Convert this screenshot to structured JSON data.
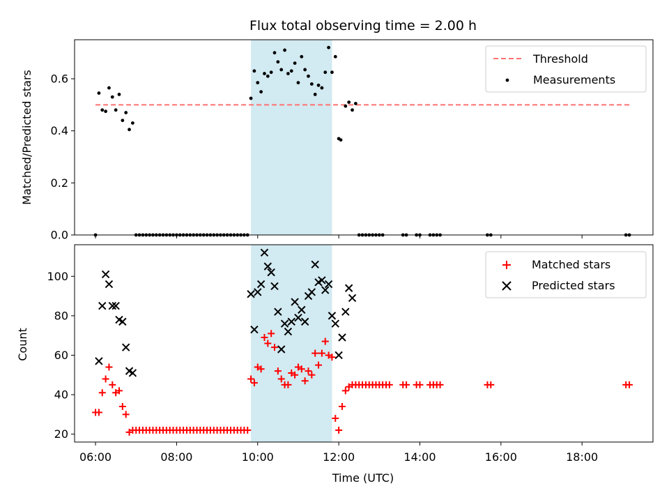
{
  "chart_data": [
    {
      "type": "scatter",
      "title": "Flux total observing time = 2.00 h",
      "xlabel": "",
      "ylabel": "Matched/Predicted stars",
      "xlim": [
        "05:29",
        "19:45"
      ],
      "ylim": [
        0,
        0.75
      ],
      "yticks": [
        0.0,
        0.2,
        0.4,
        0.6
      ],
      "ytick_labels": [
        "0.0",
        "0.2",
        "0.4",
        "0.6"
      ],
      "highlight_span": [
        "09:50",
        "11:50"
      ],
      "threshold": {
        "name": "Threshold",
        "value": 0.5,
        "x_range": [
          "06:00",
          "19:12"
        ],
        "color": "#ff7070"
      },
      "legend": {
        "placement": "top-right",
        "entries": [
          "Threshold",
          "Measurements"
        ]
      },
      "series": [
        {
          "name": "Measurements",
          "color": "#000000",
          "marker": "dot",
          "points": [
            [
              "06:00",
              0.0
            ],
            [
              "06:05",
              0.545
            ],
            [
              "06:10",
              0.48
            ],
            [
              "06:15",
              0.475
            ],
            [
              "06:20",
              0.565
            ],
            [
              "06:25",
              0.53
            ],
            [
              "06:30",
              0.48
            ],
            [
              "06:35",
              0.54
            ],
            [
              "06:40",
              0.44
            ],
            [
              "06:45",
              0.47
            ],
            [
              "06:50",
              0.405
            ],
            [
              "06:55",
              0.43
            ],
            [
              "07:00",
              0.0
            ],
            [
              "07:05",
              0.0
            ],
            [
              "07:10",
              0.0
            ],
            [
              "07:15",
              0.0
            ],
            [
              "07:20",
              0.0
            ],
            [
              "07:25",
              0.0
            ],
            [
              "07:30",
              0.0
            ],
            [
              "07:35",
              0.0
            ],
            [
              "07:40",
              0.0
            ],
            [
              "07:45",
              0.0
            ],
            [
              "07:50",
              0.0
            ],
            [
              "07:55",
              0.0
            ],
            [
              "08:00",
              0.0
            ],
            [
              "08:05",
              0.0
            ],
            [
              "08:10",
              0.0
            ],
            [
              "08:15",
              0.0
            ],
            [
              "08:20",
              0.0
            ],
            [
              "08:25",
              0.0
            ],
            [
              "08:30",
              0.0
            ],
            [
              "08:35",
              0.0
            ],
            [
              "08:40",
              0.0
            ],
            [
              "08:45",
              0.0
            ],
            [
              "08:50",
              0.0
            ],
            [
              "08:55",
              0.0
            ],
            [
              "09:00",
              0.0
            ],
            [
              "09:05",
              0.0
            ],
            [
              "09:10",
              0.0
            ],
            [
              "09:15",
              0.0
            ],
            [
              "09:20",
              0.0
            ],
            [
              "09:25",
              0.0
            ],
            [
              "09:30",
              0.0
            ],
            [
              "09:35",
              0.0
            ],
            [
              "09:40",
              0.0
            ],
            [
              "09:45",
              0.0
            ],
            [
              "09:50",
              0.525
            ],
            [
              "09:55",
              0.63
            ],
            [
              "10:00",
              0.585
            ],
            [
              "10:05",
              0.55
            ],
            [
              "10:10",
              0.62
            ],
            [
              "10:15",
              0.61
            ],
            [
              "10:20",
              0.625
            ],
            [
              "10:25",
              0.7
            ],
            [
              "10:30",
              0.665
            ],
            [
              "10:35",
              0.635
            ],
            [
              "10:40",
              0.71
            ],
            [
              "10:45",
              0.62
            ],
            [
              "10:50",
              0.63
            ],
            [
              "10:55",
              0.66
            ],
            [
              "11:00",
              0.585
            ],
            [
              "11:05",
              0.685
            ],
            [
              "11:10",
              0.635
            ],
            [
              "11:15",
              0.61
            ],
            [
              "11:20",
              0.58
            ],
            [
              "11:25",
              0.54
            ],
            [
              "11:30",
              0.575
            ],
            [
              "11:35",
              0.565
            ],
            [
              "11:40",
              0.625
            ],
            [
              "11:45",
              0.72
            ],
            [
              "11:50",
              0.625
            ],
            [
              "11:55",
              0.685
            ],
            [
              "12:00",
              0.37
            ],
            [
              "12:03",
              0.365
            ],
            [
              "12:10",
              0.495
            ],
            [
              "12:15",
              0.51
            ],
            [
              "12:20",
              0.48
            ],
            [
              "12:25",
              0.505
            ],
            [
              "12:30",
              0.0
            ],
            [
              "12:35",
              0.0
            ],
            [
              "12:40",
              0.0
            ],
            [
              "12:45",
              0.0
            ],
            [
              "12:50",
              0.0
            ],
            [
              "12:55",
              0.0
            ],
            [
              "13:00",
              0.0
            ],
            [
              "13:05",
              0.0
            ],
            [
              "13:35",
              0.0
            ],
            [
              "13:40",
              0.0
            ],
            [
              "13:55",
              0.0
            ],
            [
              "14:00",
              0.0
            ],
            [
              "14:15",
              0.0
            ],
            [
              "14:20",
              0.0
            ],
            [
              "14:25",
              0.0
            ],
            [
              "14:30",
              0.0
            ],
            [
              "15:40",
              0.0
            ],
            [
              "15:45",
              0.0
            ],
            [
              "19:05",
              0.0
            ],
            [
              "19:10",
              0.0
            ]
          ]
        }
      ]
    },
    {
      "type": "scatter",
      "title": "",
      "xlabel": "Time (UTC)",
      "ylabel": "Count",
      "xlim": [
        "05:29",
        "19:45"
      ],
      "ylim": [
        16,
        116
      ],
      "xticks": [
        "06:00",
        "08:00",
        "10:00",
        "12:00",
        "14:00",
        "16:00",
        "18:00"
      ],
      "yticks": [
        20,
        40,
        60,
        80,
        100
      ],
      "ytick_labels": [
        "20",
        "40",
        "60",
        "80",
        "100"
      ],
      "highlight_span": [
        "09:50",
        "11:50"
      ],
      "legend": {
        "placement": "top-right",
        "entries": [
          "Matched stars",
          "Predicted stars"
        ]
      },
      "series": [
        {
          "name": "Matched stars",
          "color": "#ff0000",
          "marker": "plus",
          "points": [
            [
              "06:00",
              31
            ],
            [
              "06:05",
              31
            ],
            [
              "06:10",
              41
            ],
            [
              "06:15",
              48
            ],
            [
              "06:20",
              54
            ],
            [
              "06:25",
              45
            ],
            [
              "06:30",
              41
            ],
            [
              "06:35",
              42
            ],
            [
              "06:40",
              34
            ],
            [
              "06:45",
              30
            ],
            [
              "06:50",
              21
            ],
            [
              "06:55",
              22
            ],
            [
              "07:00",
              22
            ],
            [
              "07:05",
              22
            ],
            [
              "07:10",
              22
            ],
            [
              "07:15",
              22
            ],
            [
              "07:20",
              22
            ],
            [
              "07:25",
              22
            ],
            [
              "07:30",
              22
            ],
            [
              "07:35",
              22
            ],
            [
              "07:40",
              22
            ],
            [
              "07:45",
              22
            ],
            [
              "07:50",
              22
            ],
            [
              "07:55",
              22
            ],
            [
              "08:00",
              22
            ],
            [
              "08:05",
              22
            ],
            [
              "08:10",
              22
            ],
            [
              "08:15",
              22
            ],
            [
              "08:20",
              22
            ],
            [
              "08:25",
              22
            ],
            [
              "08:30",
              22
            ],
            [
              "08:35",
              22
            ],
            [
              "08:40",
              22
            ],
            [
              "08:45",
              22
            ],
            [
              "08:50",
              22
            ],
            [
              "08:55",
              22
            ],
            [
              "09:00",
              22
            ],
            [
              "09:05",
              22
            ],
            [
              "09:10",
              22
            ],
            [
              "09:15",
              22
            ],
            [
              "09:20",
              22
            ],
            [
              "09:25",
              22
            ],
            [
              "09:30",
              22
            ],
            [
              "09:35",
              22
            ],
            [
              "09:40",
              22
            ],
            [
              "09:45",
              22
            ],
            [
              "09:50",
              48
            ],
            [
              "09:55",
              46
            ],
            [
              "10:00",
              54
            ],
            [
              "10:05",
              53
            ],
            [
              "10:10",
              69
            ],
            [
              "10:15",
              66
            ],
            [
              "10:20",
              71
            ],
            [
              "10:25",
              64
            ],
            [
              "10:30",
              52
            ],
            [
              "10:35",
              48
            ],
            [
              "10:40",
              45
            ],
            [
              "10:45",
              45
            ],
            [
              "10:50",
              51
            ],
            [
              "10:55",
              50
            ],
            [
              "11:00",
              54
            ],
            [
              "11:05",
              53
            ],
            [
              "11:10",
              47
            ],
            [
              "11:15",
              52
            ],
            [
              "11:20",
              50
            ],
            [
              "11:25",
              61
            ],
            [
              "11:30",
              55
            ],
            [
              "11:35",
              61
            ],
            [
              "11:40",
              67
            ],
            [
              "11:45",
              60
            ],
            [
              "11:50",
              59
            ],
            [
              "11:55",
              28
            ],
            [
              "12:00",
              22
            ],
            [
              "12:05",
              34
            ],
            [
              "12:10",
              42
            ],
            [
              "12:15",
              44
            ],
            [
              "12:20",
              45
            ],
            [
              "12:25",
              45
            ],
            [
              "12:30",
              45
            ],
            [
              "12:35",
              45
            ],
            [
              "12:40",
              45
            ],
            [
              "12:45",
              45
            ],
            [
              "12:50",
              45
            ],
            [
              "12:55",
              45
            ],
            [
              "13:00",
              45
            ],
            [
              "13:05",
              45
            ],
            [
              "13:10",
              45
            ],
            [
              "13:15",
              45
            ],
            [
              "13:35",
              45
            ],
            [
              "13:40",
              45
            ],
            [
              "13:55",
              45
            ],
            [
              "14:00",
              45
            ],
            [
              "14:15",
              45
            ],
            [
              "14:20",
              45
            ],
            [
              "14:25",
              45
            ],
            [
              "14:30",
              45
            ],
            [
              "15:40",
              45
            ],
            [
              "15:45",
              45
            ],
            [
              "19:05",
              45
            ],
            [
              "19:10",
              45
            ]
          ]
        },
        {
          "name": "Predicted stars",
          "color": "#000000",
          "marker": "x",
          "points": [
            [
              "06:05",
              57
            ],
            [
              "06:10",
              85
            ],
            [
              "06:15",
              101
            ],
            [
              "06:20",
              96
            ],
            [
              "06:25",
              85
            ],
            [
              "06:30",
              85
            ],
            [
              "06:35",
              78
            ],
            [
              "06:40",
              77
            ],
            [
              "06:45",
              64
            ],
            [
              "06:50",
              52
            ],
            [
              "06:55",
              51
            ],
            [
              "09:50",
              91
            ],
            [
              "09:55",
              73
            ],
            [
              "10:00",
              92
            ],
            [
              "10:05",
              96
            ],
            [
              "10:10",
              112
            ],
            [
              "10:15",
              105
            ],
            [
              "10:20",
              102
            ],
            [
              "10:25",
              95
            ],
            [
              "10:30",
              82
            ],
            [
              "10:35",
              63
            ],
            [
              "10:40",
              76
            ],
            [
              "10:45",
              72
            ],
            [
              "10:50",
              77
            ],
            [
              "10:55",
              87
            ],
            [
              "11:00",
              79
            ],
            [
              "11:05",
              83
            ],
            [
              "11:10",
              77
            ],
            [
              "11:15",
              90
            ],
            [
              "11:20",
              92
            ],
            [
              "11:25",
              106
            ],
            [
              "11:30",
              97
            ],
            [
              "11:35",
              98
            ],
            [
              "11:40",
              93
            ],
            [
              "11:45",
              96
            ],
            [
              "11:50",
              80
            ],
            [
              "11:55",
              76
            ],
            [
              "12:00",
              60
            ],
            [
              "12:05",
              69
            ],
            [
              "12:10",
              82
            ],
            [
              "12:15",
              94
            ],
            [
              "12:20",
              89
            ]
          ]
        }
      ]
    }
  ]
}
